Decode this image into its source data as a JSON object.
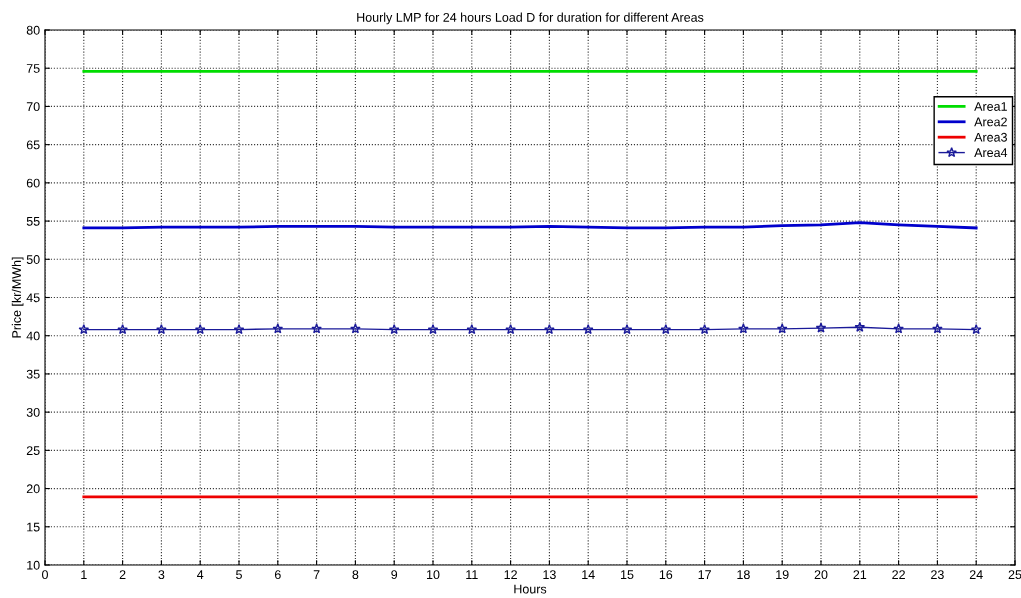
{
  "chart_data": {
    "type": "line",
    "title": "Hourly LMP for 24 hours Load D for duration for different Areas",
    "xlabel": "Hours",
    "ylabel": "Price [kr/MWh]",
    "x": [
      1,
      2,
      3,
      4,
      5,
      6,
      7,
      8,
      9,
      10,
      11,
      12,
      13,
      14,
      15,
      16,
      17,
      18,
      19,
      20,
      21,
      22,
      23,
      24
    ],
    "series": [
      {
        "name": "Area1",
        "color": "#00dd00",
        "marker": "none",
        "values": [
          74.6,
          74.6,
          74.6,
          74.6,
          74.6,
          74.6,
          74.6,
          74.6,
          74.6,
          74.6,
          74.6,
          74.6,
          74.6,
          74.6,
          74.6,
          74.6,
          74.6,
          74.6,
          74.6,
          74.6,
          74.6,
          74.6,
          74.6,
          74.6
        ]
      },
      {
        "name": "Area2",
        "color": "#0000cc",
        "marker": "none",
        "values": [
          54.1,
          54.1,
          54.2,
          54.2,
          54.2,
          54.3,
          54.3,
          54.3,
          54.2,
          54.2,
          54.2,
          54.2,
          54.3,
          54.2,
          54.1,
          54.1,
          54.2,
          54.2,
          54.4,
          54.5,
          54.8,
          54.5,
          54.3,
          54.1
        ]
      },
      {
        "name": "Area3",
        "color": "#ee0000",
        "marker": "none",
        "values": [
          18.9,
          18.9,
          18.9,
          18.9,
          18.9,
          18.9,
          18.9,
          18.9,
          18.9,
          18.9,
          18.9,
          18.9,
          18.9,
          18.9,
          18.9,
          18.9,
          18.9,
          18.9,
          18.9,
          18.9,
          18.9,
          18.9,
          18.9,
          18.9
        ]
      },
      {
        "name": "Area4",
        "color": "#1a1a99",
        "marker": "star",
        "values": [
          40.8,
          40.8,
          40.8,
          40.8,
          40.8,
          40.9,
          40.9,
          40.9,
          40.8,
          40.8,
          40.8,
          40.8,
          40.8,
          40.8,
          40.8,
          40.8,
          40.8,
          40.9,
          40.9,
          41.0,
          41.1,
          40.9,
          40.9,
          40.8
        ]
      }
    ],
    "xlim": [
      0,
      25
    ],
    "xticks": [
      0,
      1,
      2,
      3,
      4,
      5,
      6,
      7,
      8,
      9,
      10,
      11,
      12,
      13,
      14,
      15,
      16,
      17,
      18,
      19,
      20,
      21,
      22,
      23,
      24,
      25
    ],
    "ylim": [
      10,
      80
    ],
    "yticks": [
      10,
      15,
      20,
      25,
      30,
      35,
      40,
      45,
      50,
      55,
      60,
      65,
      70,
      75,
      80
    ],
    "grid": true,
    "legend": "top right",
    "line_style": "solid"
  }
}
